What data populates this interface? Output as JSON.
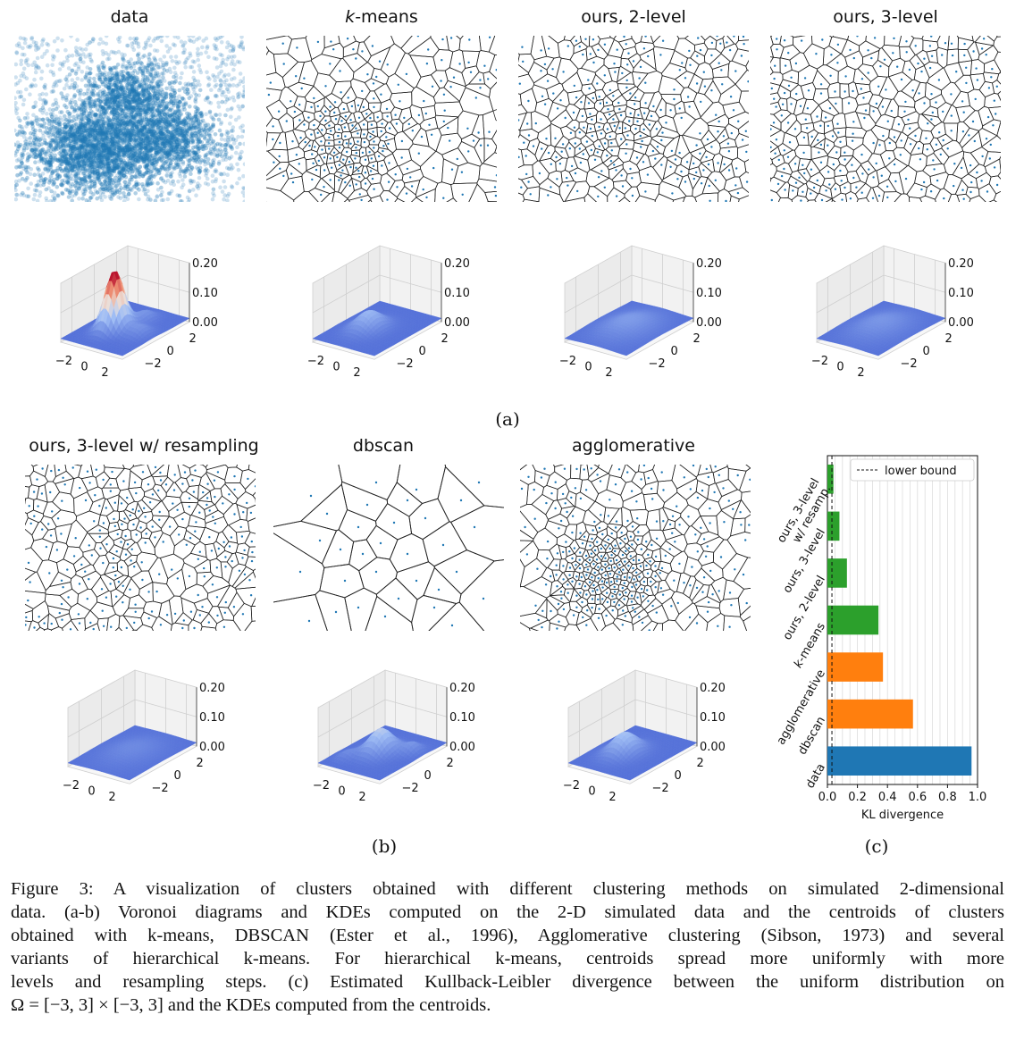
{
  "figure": {
    "row_a_titles": [
      {
        "id": "data",
        "text": "data"
      },
      {
        "id": "kmeans",
        "italic_part": "k",
        "text": "-means"
      },
      {
        "id": "ours2",
        "text": "ours, 2-level"
      },
      {
        "id": "ours3",
        "text": "ours, 3-level"
      }
    ],
    "row_b_titles": [
      {
        "id": "ours3r",
        "text": "ours, 3-level w/ resampling"
      },
      {
        "id": "dbscan",
        "text": "dbscan"
      },
      {
        "id": "agglo",
        "text": "agglomerative"
      }
    ],
    "sublabels": {
      "a": "(a)",
      "b": "(b)",
      "c": "(c)"
    },
    "kde_axis": {
      "z_ticks": [
        "0.20",
        "0.10",
        "0.00"
      ],
      "x_ticks": [
        "−2",
        "0",
        "2"
      ],
      "y_ticks": [
        "2",
        "0",
        "−2"
      ]
    },
    "kde_peaks": {
      "data": 0.2,
      "kmeans": 0.06,
      "ours2": 0.035,
      "ours3": 0.03,
      "ours3r": 0.02,
      "dbscan": 0.08,
      "agglo": 0.07
    },
    "colors": {
      "scatter": "#1f77b4",
      "voronoi": "#222222",
      "surface_low": "#5470d8",
      "surface_high": "#b40426",
      "bar_blue": "#1f77b4",
      "bar_orange": "#ff7f0e",
      "bar_green": "#2ca02c"
    }
  },
  "chart_data": {
    "type": "bar",
    "orientation": "horizontal",
    "categories": [
      "ours, 3-level w/ resamp.",
      "ours, 3-level",
      "ours, 2-level",
      "k-means",
      "agglomerative",
      "dbscan",
      "data"
    ],
    "values": [
      0.04,
      0.08,
      0.13,
      0.34,
      0.37,
      0.57,
      0.96
    ],
    "bar_colors": [
      "#2ca02c",
      "#2ca02c",
      "#2ca02c",
      "#2ca02c",
      "#ff7f0e",
      "#ff7f0e",
      "#1f77b4"
    ],
    "xlabel": "KL divergence",
    "xlim": [
      0.0,
      1.0
    ],
    "x_ticks": [
      "0.0",
      "0.2",
      "0.4",
      "0.6",
      "0.8",
      "1.0"
    ],
    "lower_bound": 0.03,
    "legend": {
      "label": "lower bound",
      "position": "top-right"
    },
    "grid": "vertical"
  },
  "caption": {
    "lines": [
      "Figure 3: A visualization of clusters obtained with different clustering methods on simulated 2-dimensional",
      "data. (a-b) Voronoi diagrams and KDEs computed on the 2-D simulated data and the centroids of clusters",
      "obtained with k-means, DBSCAN (Ester et al., 1996), Agglomerative clustering (Sibson, 1973) and several",
      "variants of hierarchical k-means.  For hierarchical k-means, centroids spread more uniformly with more",
      "levels and resampling steps. (c) Estimated Kullback-Leibler divergence between the uniform distribution on",
      "Ω = [−3, 3] × [−3, 3] and the KDEs computed from the centroids."
    ]
  }
}
